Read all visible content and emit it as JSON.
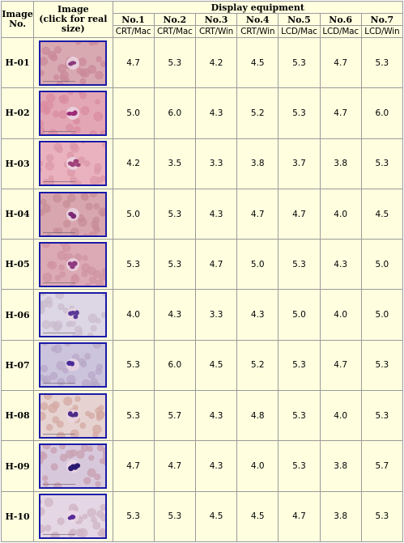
{
  "header": {
    "image_no": [
      "Image",
      "No."
    ],
    "image": [
      "Image",
      "(click for real",
      "size)"
    ],
    "display_equipment": "Display equipment",
    "equipment": [
      {
        "no": "No.1",
        "type": "CRT/Mac"
      },
      {
        "no": "No.2",
        "type": "CRT/Mac"
      },
      {
        "no": "No.3",
        "type": "CRT/Win"
      },
      {
        "no": "No.4",
        "type": "CRT/Win"
      },
      {
        "no": "No.5",
        "type": "LCD/Mac"
      },
      {
        "no": "No.6",
        "type": "LCD/Mac"
      },
      {
        "no": "No.7",
        "type": "LCD/Win"
      }
    ]
  },
  "rows": [
    {
      "id": "H-01",
      "thumb_bg": "#d9a9b2",
      "cell_color": "#c98a9a",
      "nucleus_color": "#8a3b7c",
      "values": [
        "4.7",
        "5.3",
        "4.2",
        "4.5",
        "5.3",
        "4.7",
        "5.3"
      ]
    },
    {
      "id": "H-02",
      "thumb_bg": "#e2a6b4",
      "cell_color": "#d98ca0",
      "nucleus_color": "#9c2a78",
      "values": [
        "5.0",
        "6.0",
        "4.3",
        "5.2",
        "5.3",
        "4.7",
        "6.0"
      ]
    },
    {
      "id": "H-03",
      "thumb_bg": "#eab2be",
      "cell_color": "#dc98a8",
      "nucleus_color": "#a0407a",
      "values": [
        "4.2",
        "3.5",
        "3.3",
        "3.8",
        "3.7",
        "3.8",
        "5.3"
      ]
    },
    {
      "id": "H-04",
      "thumb_bg": "#d8a6ae",
      "cell_color": "#c88d97",
      "nucleus_color": "#7a2a72",
      "values": [
        "5.0",
        "5.3",
        "4.3",
        "4.7",
        "4.7",
        "4.0",
        "4.5"
      ]
    },
    {
      "id": "H-05",
      "thumb_bg": "#dcaab4",
      "cell_color": "#cf93a2",
      "nucleus_color": "#8e3a80",
      "values": [
        "5.3",
        "5.3",
        "4.7",
        "5.0",
        "5.3",
        "4.3",
        "5.0"
      ]
    },
    {
      "id": "H-06",
      "thumb_bg": "#ddd6e4",
      "cell_color": "#c9bccf",
      "nucleus_color": "#5a3a98",
      "values": [
        "4.0",
        "4.3",
        "3.3",
        "4.3",
        "5.0",
        "4.0",
        "5.0"
      ]
    },
    {
      "id": "H-07",
      "thumb_bg": "#ccc4dc",
      "cell_color": "#b8a8c8",
      "nucleus_color": "#4a2a98",
      "values": [
        "5.3",
        "6.0",
        "4.5",
        "5.2",
        "5.3",
        "4.7",
        "5.3"
      ]
    },
    {
      "id": "H-08",
      "thumb_bg": "#e6d2d0",
      "cell_color": "#d4a9a4",
      "nucleus_color": "#4e2a88",
      "values": [
        "5.3",
        "5.7",
        "4.3",
        "4.8",
        "5.3",
        "4.0",
        "5.3"
      ]
    },
    {
      "id": "H-09",
      "thumb_bg": "#d8c8dc",
      "cell_color": "#c8a0b0",
      "nucleus_color": "#2a1a70",
      "values": [
        "4.7",
        "4.7",
        "4.3",
        "4.0",
        "5.3",
        "3.8",
        "5.7"
      ]
    },
    {
      "id": "H-10",
      "thumb_bg": "#e4d6e4",
      "cell_color": "#cfb4c4",
      "nucleus_color": "#5a2a9a",
      "values": [
        "5.3",
        "5.3",
        "4.5",
        "4.5",
        "4.7",
        "3.8",
        "5.3"
      ]
    }
  ]
}
